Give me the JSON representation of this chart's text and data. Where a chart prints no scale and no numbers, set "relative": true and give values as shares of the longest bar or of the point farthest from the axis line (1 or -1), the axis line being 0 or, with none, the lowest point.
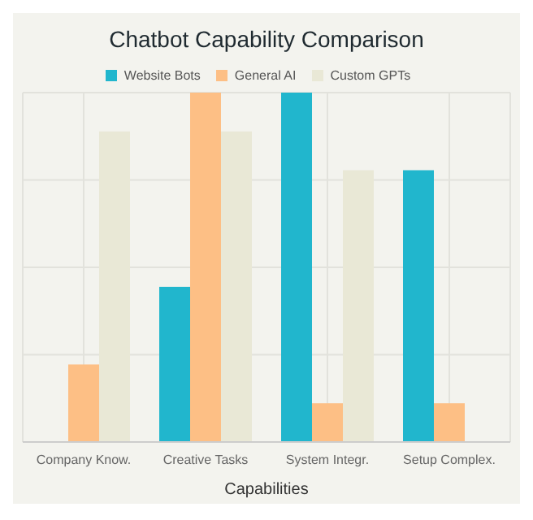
{
  "chart_data": {
    "type": "bar",
    "title": "Chatbot Capability Comparison",
    "xlabel": "Capabilities",
    "categories": [
      "Company Know.",
      "Creative Tasks",
      "System Integr.",
      "Setup Complex."
    ],
    "relative": true,
    "grid": true,
    "legend": "top",
    "series": [
      {
        "name": "Website Bots",
        "color": "#21b6cd",
        "values": [
          null,
          0.444,
          1,
          0.778
        ]
      },
      {
        "name": "General AI",
        "color": "#fdbf85",
        "values": [
          0.222,
          1,
          0.111,
          0.111
        ]
      },
      {
        "name": "Custom GPTs",
        "color": "#e9e8d6",
        "values": [
          0.889,
          0.889,
          0.778,
          null
        ]
      }
    ]
  }
}
